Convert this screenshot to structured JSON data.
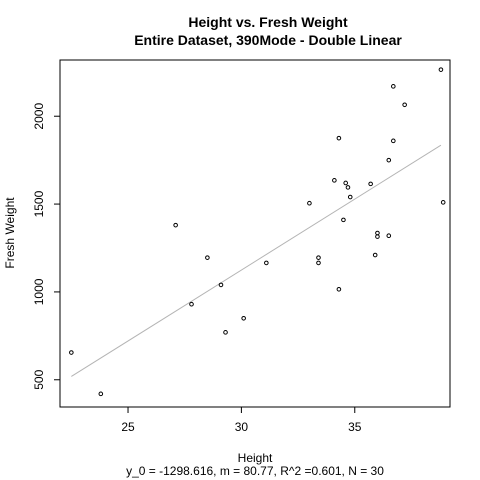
{
  "chart_data": {
    "type": "scatter",
    "title": "Height vs. Fresh Weight",
    "subtitle": "Entire Dataset, 390Mode - Double Linear",
    "xlabel": "Height",
    "ylabel": "Fresh Weight",
    "caption": "y_0 = -1298.616, m = 80.77, R^2 =0.601, N = 30",
    "xlim": [
      22.0,
      39.2
    ],
    "ylim": [
      345,
      2320
    ],
    "xticks": [
      25,
      30,
      35
    ],
    "yticks": [
      500,
      1000,
      1500,
      2000
    ],
    "xtick_labels": [
      "25",
      "30",
      "35"
    ],
    "ytick_labels": [
      "500",
      "1000",
      "1500",
      "2000"
    ],
    "grid": false,
    "legend": "none",
    "point_color": "#000000",
    "fit_color": "#b4b4b4",
    "fit": {
      "intercept": -1298.616,
      "slope": 80.77,
      "x_range": [
        22.5,
        38.8
      ]
    },
    "points": [
      {
        "x": 22.5,
        "y": 655
      },
      {
        "x": 23.8,
        "y": 420
      },
      {
        "x": 27.1,
        "y": 1380
      },
      {
        "x": 27.8,
        "y": 930
      },
      {
        "x": 28.5,
        "y": 1195
      },
      {
        "x": 29.1,
        "y": 1040
      },
      {
        "x": 29.3,
        "y": 770
      },
      {
        "x": 30.1,
        "y": 850
      },
      {
        "x": 31.1,
        "y": 1165
      },
      {
        "x": 33.0,
        "y": 1505
      },
      {
        "x": 33.4,
        "y": 1195
      },
      {
        "x": 33.4,
        "y": 1165
      },
      {
        "x": 34.1,
        "y": 1635
      },
      {
        "x": 34.3,
        "y": 1875
      },
      {
        "x": 34.3,
        "y": 1015
      },
      {
        "x": 34.5,
        "y": 1410
      },
      {
        "x": 34.6,
        "y": 1620
      },
      {
        "x": 34.7,
        "y": 1595
      },
      {
        "x": 34.8,
        "y": 1540
      },
      {
        "x": 35.7,
        "y": 1615
      },
      {
        "x": 35.9,
        "y": 1210
      },
      {
        "x": 36.0,
        "y": 1335
      },
      {
        "x": 36.0,
        "y": 1315
      },
      {
        "x": 36.5,
        "y": 1750
      },
      {
        "x": 36.5,
        "y": 1320
      },
      {
        "x": 36.7,
        "y": 2170
      },
      {
        "x": 36.7,
        "y": 1860
      },
      {
        "x": 37.2,
        "y": 2065
      },
      {
        "x": 38.8,
        "y": 2265
      },
      {
        "x": 38.9,
        "y": 1510
      }
    ]
  }
}
